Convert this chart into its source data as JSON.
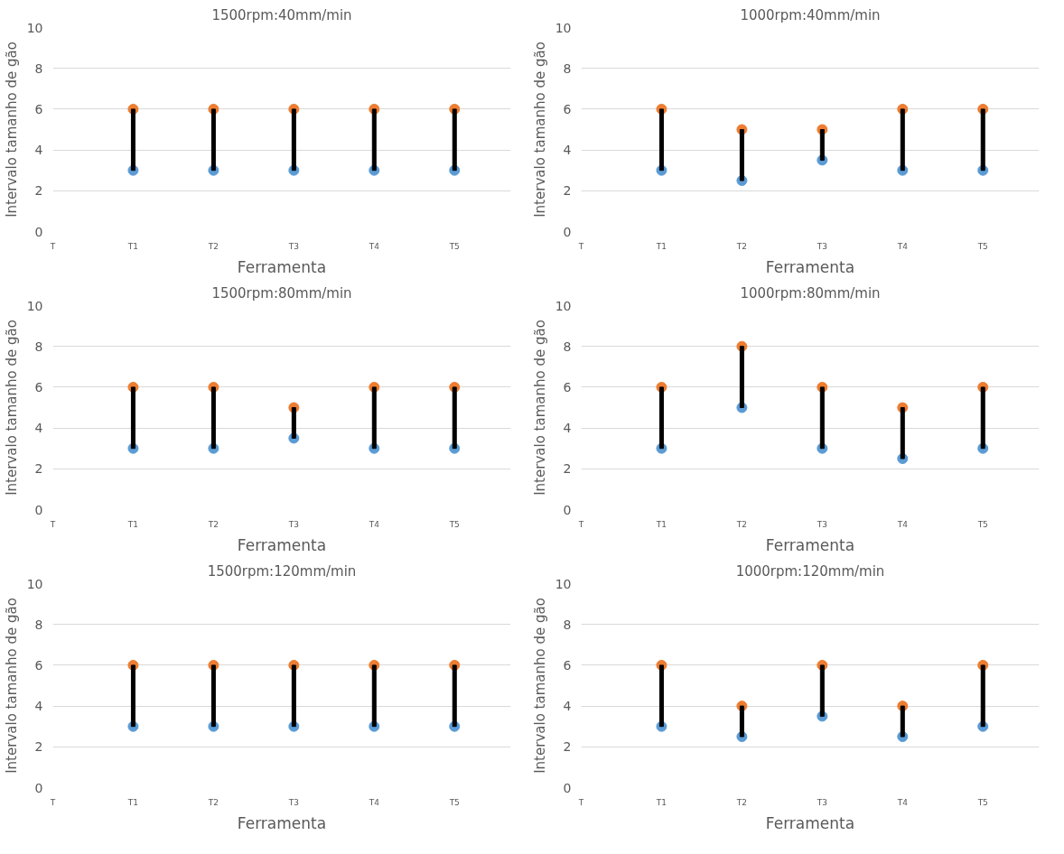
{
  "chart_data": [
    {
      "type": "scatter",
      "title": "1500rpm:40mm/min",
      "xlabel": "Ferramenta",
      "ylabel": "Intervalo tamanho de gão",
      "categories": [
        "T",
        "T1",
        "T2",
        "T3",
        "T4",
        "T5"
      ],
      "ylim": [
        0,
        10
      ],
      "yticks": [
        0,
        2,
        4,
        6,
        8,
        10
      ],
      "grid": "y",
      "marker": "circle",
      "series": [
        {
          "type": "bar",
          "color": "#000000",
          "base": [
            null,
            3,
            3,
            3,
            3,
            3
          ],
          "values": [
            null,
            3,
            3,
            3,
            3,
            3
          ]
        },
        {
          "color": "#5b9bd5",
          "values": [
            null,
            3,
            3,
            3,
            3,
            3
          ]
        },
        {
          "color": "#ed7d31",
          "values": [
            null,
            6,
            6,
            6,
            6,
            6
          ]
        }
      ]
    },
    {
      "type": "scatter",
      "title": "1000rpm:40mm/min",
      "xlabel": "Ferramenta",
      "ylabel": "Intervalo tamanho de gão",
      "categories": [
        "T",
        "T1",
        "T2",
        "T3",
        "T4",
        "T5"
      ],
      "ylim": [
        0,
        10
      ],
      "yticks": [
        0,
        2,
        4,
        6,
        8,
        10
      ],
      "grid": "y",
      "marker": "circle",
      "series": [
        {
          "type": "bar",
          "color": "#000000",
          "base": [
            null,
            3,
            2.5,
            3.5,
            3,
            3
          ],
          "values": [
            null,
            3,
            2.5,
            1.5,
            3,
            3
          ]
        },
        {
          "color": "#5b9bd5",
          "values": [
            null,
            3,
            2.5,
            3.5,
            3,
            3
          ]
        },
        {
          "color": "#ed7d31",
          "values": [
            null,
            6,
            5,
            5,
            6,
            6
          ]
        }
      ]
    },
    {
      "type": "scatter",
      "title": "1500rpm:80mm/min",
      "xlabel": "Ferramenta",
      "ylabel": "Intervalo tamanho de gão",
      "categories": [
        "T",
        "T1",
        "T2",
        "T3",
        "T4",
        "T5"
      ],
      "ylim": [
        0,
        10
      ],
      "yticks": [
        0,
        2,
        4,
        6,
        8,
        10
      ],
      "grid": "y",
      "marker": "circle",
      "series": [
        {
          "type": "bar",
          "color": "#000000",
          "base": [
            null,
            3,
            3,
            3.5,
            3,
            3
          ],
          "values": [
            null,
            3,
            3,
            1.5,
            3,
            3
          ]
        },
        {
          "color": "#5b9bd5",
          "values": [
            null,
            3,
            3,
            3.5,
            3,
            3
          ]
        },
        {
          "color": "#ed7d31",
          "values": [
            null,
            6,
            6,
            5,
            6,
            6
          ]
        }
      ]
    },
    {
      "type": "scatter",
      "title": "1000rpm:80mm/min",
      "xlabel": "Ferramenta",
      "ylabel": "Intervalo tamanho de gão",
      "categories": [
        "T",
        "T1",
        "T2",
        "T3",
        "T4",
        "T5"
      ],
      "ylim": [
        0,
        10
      ],
      "yticks": [
        0,
        2,
        4,
        6,
        8,
        10
      ],
      "grid": "y",
      "marker": "circle",
      "series": [
        {
          "type": "bar",
          "color": "#000000",
          "base": [
            null,
            3,
            5,
            3,
            2.5,
            3
          ],
          "values": [
            null,
            3,
            3,
            3,
            2.5,
            3
          ]
        },
        {
          "color": "#5b9bd5",
          "values": [
            null,
            3,
            5,
            3,
            2.5,
            3
          ]
        },
        {
          "color": "#ed7d31",
          "values": [
            null,
            6,
            8,
            6,
            5,
            6
          ]
        }
      ]
    },
    {
      "type": "scatter",
      "title": "1500rpm:120mm/min",
      "xlabel": "Ferramenta",
      "ylabel": "Intervalo tamanho de gão",
      "categories": [
        "T",
        "T1",
        "T2",
        "T3",
        "T4",
        "T5"
      ],
      "ylim": [
        0,
        10
      ],
      "yticks": [
        0,
        2,
        4,
        6,
        8,
        10
      ],
      "grid": "y",
      "marker": "circle",
      "series": [
        {
          "type": "bar",
          "color": "#000000",
          "base": [
            null,
            3,
            3,
            3,
            3,
            3
          ],
          "values": [
            null,
            3,
            3,
            3,
            3,
            3
          ]
        },
        {
          "color": "#5b9bd5",
          "values": [
            null,
            3,
            3,
            3,
            3,
            3
          ]
        },
        {
          "color": "#ed7d31",
          "values": [
            null,
            6,
            6,
            6,
            6,
            6
          ]
        }
      ]
    },
    {
      "type": "scatter",
      "title": "1000rpm:120mm/min",
      "xlabel": "Ferramenta",
      "ylabel": "Intervalo tamanho de gão",
      "categories": [
        "T",
        "T1",
        "T2",
        "T3",
        "T4",
        "T5"
      ],
      "ylim": [
        0,
        10
      ],
      "yticks": [
        0,
        2,
        4,
        6,
        8,
        10
      ],
      "grid": "y",
      "marker": "circle",
      "series": [
        {
          "type": "bar",
          "color": "#000000",
          "base": [
            null,
            3,
            2.5,
            3.5,
            2.5,
            3
          ],
          "values": [
            null,
            3,
            1.5,
            2.5,
            1.5,
            3
          ]
        },
        {
          "color": "#5b9bd5",
          "values": [
            null,
            3,
            2.5,
            3.5,
            2.5,
            3
          ]
        },
        {
          "color": "#ed7d31",
          "values": [
            null,
            6,
            4,
            6,
            4,
            6
          ]
        }
      ]
    }
  ]
}
